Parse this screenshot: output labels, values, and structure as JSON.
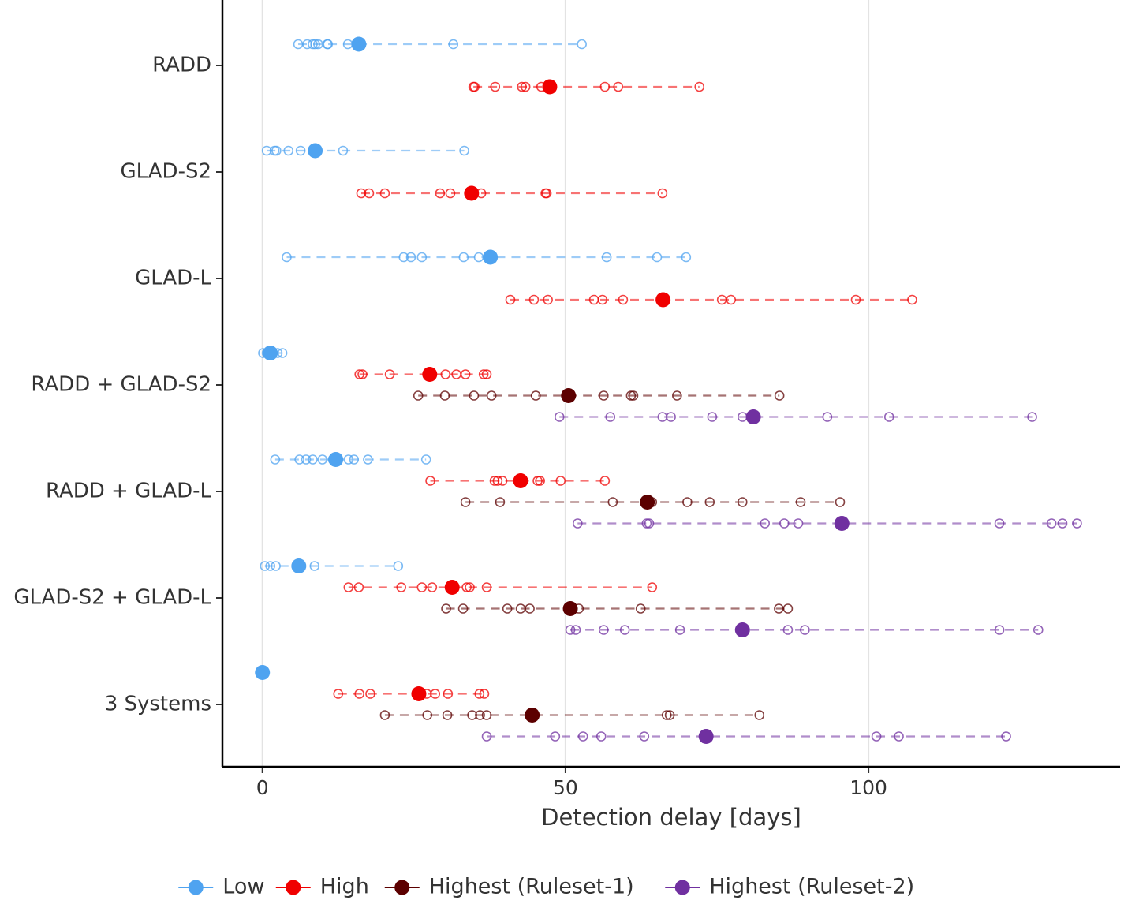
{
  "chart_data": {
    "type": "dot-range",
    "x_label": "Detection delay [days]",
    "xlim": [
      -6.6,
      141.5
    ],
    "xticks": [
      0,
      50,
      100
    ],
    "grid": true,
    "legend_position": "bottom",
    "categories": [
      "RADD",
      "GLAD-S2",
      "GLAD-L",
      "RADD + GLAD-S2",
      "RADD + GLAD-L",
      "GLAD-S2 + GLAD-L",
      "3 Systems"
    ],
    "series": [
      {
        "name": "Low",
        "color": "#4fa3f0",
        "values": [
          15.9,
          8.7,
          37.6,
          1.3,
          12.1,
          6.0,
          0
        ],
        "points": [
          [
            5.9,
            7.4,
            8.3,
            8.7,
            9.2,
            10.7,
            10.8,
            14.1,
            31.5,
            52.7
          ],
          [
            0.7,
            2.0,
            2.3,
            4.3,
            6.3,
            13.3,
            33.3
          ],
          [
            4.0,
            23.3,
            24.5,
            26.3,
            33.2,
            35.7,
            56.8,
            65.1,
            69.9
          ],
          [
            0.1,
            0.7,
            1.7,
            2.5,
            3.3
          ],
          [
            2.1,
            6.1,
            7.2,
            8.3,
            9.9,
            11.6,
            14.2,
            15.1,
            17.4,
            27.0
          ],
          [
            0.4,
            1.3,
            2.2,
            8.6,
            22.4
          ],
          []
        ]
      },
      {
        "name": "High",
        "color": "#f00000",
        "values": [
          47.4,
          34.5,
          66.1,
          27.6,
          42.6,
          31.3,
          25.8
        ],
        "points": [
          [
            34.8,
            35.0,
            38.4,
            42.8,
            43.4,
            46.0,
            56.5,
            58.7,
            72.1
          ],
          [
            16.3,
            17.6,
            20.2,
            29.3,
            31.0,
            36.1,
            46.7,
            46.9,
            66.0
          ],
          [
            40.9,
            44.8,
            47.1,
            54.7,
            56.1,
            59.5,
            75.8,
            77.3,
            97.9,
            107.2
          ],
          [
            16.0,
            16.5,
            21.0,
            30.2,
            32.0,
            33.5,
            36.5,
            37.0
          ],
          [
            27.7,
            38.3,
            38.8,
            39.6,
            45.4,
            45.8,
            49.2,
            56.5
          ],
          [
            14.2,
            15.9,
            22.9,
            26.3,
            28.0,
            33.7,
            34.2,
            37.0,
            64.3
          ],
          [
            12.5,
            16.0,
            17.8,
            25.8,
            27.1,
            28.5,
            30.6,
            35.8,
            36.6
          ]
        ]
      },
      {
        "name": "Highest (Ruleset-1)",
        "color": "#5c0000",
        "values": [
          null,
          null,
          null,
          50.5,
          63.5,
          50.8,
          44.5
        ],
        "points": [
          null,
          null,
          null,
          [
            25.7,
            30.1,
            34.9,
            37.8,
            45.1,
            56.3,
            60.8,
            61.2,
            68.4,
            85.3
          ],
          [
            33.5,
            39.2,
            57.8,
            64.3,
            70.1,
            73.8,
            79.2,
            88.8,
            95.3
          ],
          [
            30.3,
            33.1,
            40.4,
            42.6,
            44.1,
            52.2,
            62.4,
            85.2,
            86.7
          ],
          [
            20.2,
            27.2,
            30.5,
            34.6,
            35.9,
            37.0,
            66.7,
            67.2,
            82.0
          ]
        ]
      },
      {
        "name": "Highest (Ruleset-2)",
        "color": "#7030a0",
        "values": [
          null,
          null,
          null,
          81.0,
          95.6,
          79.2,
          73.2
        ],
        "points": [
          null,
          null,
          null,
          [
            49.0,
            57.4,
            66.0,
            67.4,
            74.2,
            79.2,
            93.2,
            103.4,
            127.0
          ],
          [
            52.0,
            63.4,
            63.8,
            82.9,
            86.1,
            88.4,
            121.6,
            130.2,
            132.0,
            134.4
          ],
          [
            50.8,
            51.7,
            56.3,
            59.8,
            68.9,
            86.7,
            89.5,
            121.6,
            128.0
          ],
          [
            37.0,
            48.3,
            52.9,
            55.9,
            63.0,
            101.3,
            105.0,
            122.7
          ]
        ]
      }
    ]
  }
}
